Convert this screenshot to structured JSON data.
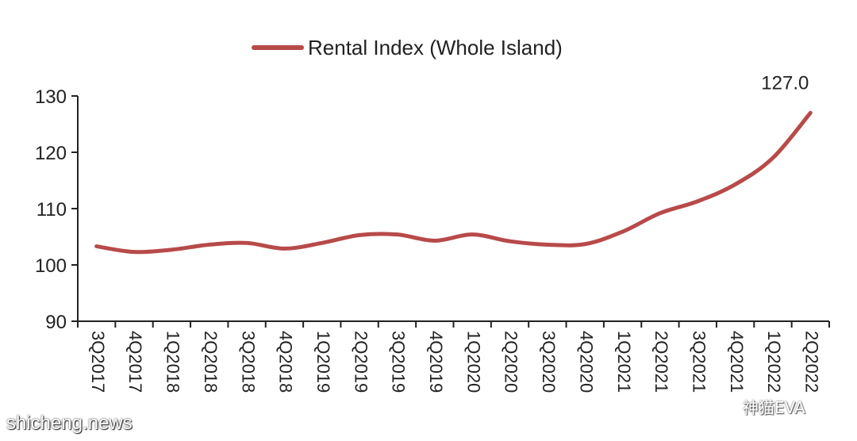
{
  "chart_data": {
    "type": "line",
    "title": "",
    "xlabel": "",
    "ylabel": "",
    "ylim": [
      90,
      130
    ],
    "yticks": [
      90,
      100,
      110,
      120,
      130
    ],
    "categories": [
      "3Q2017",
      "4Q2017",
      "1Q2018",
      "2Q2018",
      "3Q2018",
      "4Q2018",
      "1Q2019",
      "2Q2019",
      "3Q2019",
      "4Q2019",
      "1Q2020",
      "2Q2020",
      "3Q2020",
      "4Q2020",
      "1Q2021",
      "2Q2021",
      "3Q2021",
      "4Q2021",
      "1Q2022",
      "2Q2022"
    ],
    "series": [
      {
        "name": "Rental Index (Whole Island)",
        "color": "#b84a4a",
        "values": [
          103.3,
          102.3,
          102.7,
          103.6,
          103.9,
          102.9,
          103.9,
          105.3,
          105.4,
          104.3,
          105.4,
          104.2,
          103.6,
          103.7,
          105.9,
          109.2,
          111.3,
          114.3,
          119.0,
          127.0
        ]
      }
    ],
    "annotations": [
      {
        "category": "2Q2022",
        "text": "127.0"
      }
    ],
    "legend_position": "top-center",
    "grid": false
  },
  "watermarks": {
    "left": "shicheng.news",
    "right": "神猫EVA",
    "right_icon": "wechat-icon"
  }
}
